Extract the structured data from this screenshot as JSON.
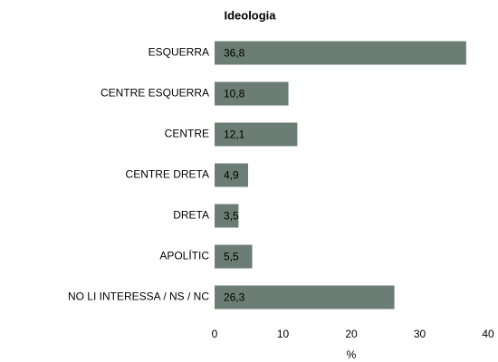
{
  "chart_data": {
    "type": "bar",
    "orientation": "horizontal",
    "title": "Ideologia",
    "categories": [
      "ESQUERRA",
      "CENTRE ESQUERRA",
      "CENTRE",
      "CENTRE DRETA",
      "DRETA",
      "APOLÍTIC",
      "NO LI INTERESSA / NS / NC"
    ],
    "values": [
      36.8,
      10.8,
      12.1,
      4.9,
      3.5,
      5.5,
      26.3
    ],
    "value_labels": [
      "36,8",
      "10,8",
      "12,1",
      "4,9",
      "3,5",
      "5,5",
      "26,3"
    ],
    "color": "#6b7d75",
    "xlim": [
      0,
      40
    ],
    "xticks": [
      0,
      10,
      20,
      30,
      40
    ],
    "xlabel": "%",
    "grid": false
  }
}
